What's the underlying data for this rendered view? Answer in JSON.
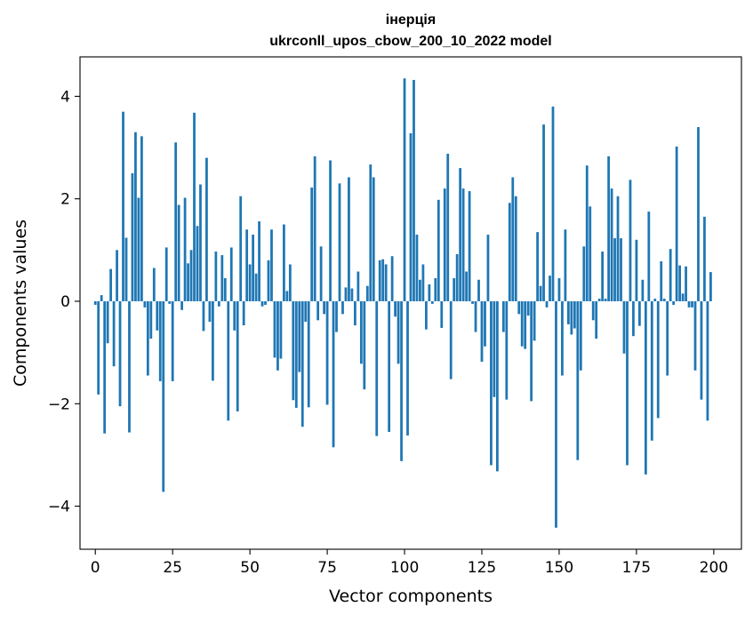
{
  "chart_data": {
    "type": "bar",
    "title": "інерція",
    "subtitle": "ukrconll_upos_cbow_200_10_2022 model",
    "xlabel": "Vector components",
    "ylabel": "Components values",
    "xlim": [
      -4.95,
      208.95
    ],
    "ylim": [
      -4.84,
      4.77
    ],
    "x_ticks": [
      0,
      25,
      50,
      75,
      100,
      125,
      150,
      175,
      200
    ],
    "y_ticks": [
      -4,
      -2,
      0,
      2,
      4
    ],
    "y_tick_labels": [
      "−4",
      "−2",
      "0",
      "2",
      "4"
    ],
    "bar_color": "#1f77b4",
    "grid": false,
    "legend": "none",
    "values": [
      -0.07,
      -1.82,
      0.12,
      -2.58,
      -0.82,
      0.63,
      -1.27,
      1.0,
      -2.05,
      3.7,
      1.24,
      -2.56,
      2.5,
      3.3,
      2.02,
      3.22,
      -0.12,
      -1.45,
      -0.73,
      0.65,
      -0.57,
      -1.56,
      -3.72,
      1.05,
      -0.05,
      -1.56,
      3.1,
      1.88,
      -0.17,
      2.02,
      0.74,
      1.0,
      3.68,
      1.47,
      2.28,
      -0.58,
      2.8,
      -0.4,
      -1.55,
      0.97,
      -0.1,
      0.9,
      0.45,
      -2.33,
      1.05,
      -0.57,
      -2.15,
      2.05,
      -0.47,
      1.4,
      0.72,
      1.3,
      0.54,
      1.56,
      -0.1,
      -0.07,
      0.8,
      1.4,
      -1.1,
      -1.35,
      -1.12,
      1.5,
      0.2,
      0.72,
      -1.93,
      -2.08,
      -1.38,
      -2.45,
      -0.4,
      -2.07,
      2.22,
      2.83,
      -0.37,
      1.07,
      -0.25,
      -2.02,
      2.75,
      -2.85,
      -0.6,
      2.3,
      -0.25,
      0.27,
      2.42,
      0.25,
      -0.47,
      0.58,
      -1.22,
      -1.72,
      0.3,
      2.67,
      2.42,
      -2.63,
      0.8,
      0.82,
      0.72,
      -2.55,
      0.88,
      -0.3,
      -1.22,
      -3.12,
      4.35,
      -2.62,
      3.28,
      4.32,
      1.3,
      0.42,
      0.72,
      -0.55,
      0.33,
      -0.05,
      0.45,
      1.98,
      -0.52,
      2.2,
      2.88,
      -1.52,
      0.45,
      0.92,
      2.6,
      2.2,
      0.58,
      2.15,
      -0.05,
      -0.6,
      0.42,
      -1.18,
      -0.88,
      1.3,
      -3.2,
      -1.87,
      -3.32,
      0.0,
      -0.6,
      -1.92,
      1.92,
      2.42,
      2.05,
      -0.25,
      -0.88,
      -0.93,
      -0.28,
      -1.95,
      -0.77,
      1.35,
      0.3,
      3.45,
      -0.12,
      0.5,
      3.8,
      -4.42,
      0.45,
      -1.45,
      1.4,
      -0.45,
      -0.65,
      -0.53,
      -3.1,
      -1.35,
      1.07,
      2.65,
      1.85,
      -0.37,
      -0.73,
      0.05,
      0.97,
      0.05,
      2.83,
      2.2,
      1.23,
      2.05,
      1.23,
      -1.02,
      -3.2,
      2.37,
      -0.68,
      1.2,
      -0.48,
      0.42,
      -3.38,
      1.75,
      -2.72,
      0.05,
      -2.28,
      0.78,
      0.05,
      -1.45,
      1.02,
      -0.07,
      3.02,
      0.7,
      0.15,
      0.68,
      -0.12,
      -0.12,
      -1.35,
      3.4,
      -1.92,
      1.65,
      -2.33,
      0.57
    ]
  }
}
